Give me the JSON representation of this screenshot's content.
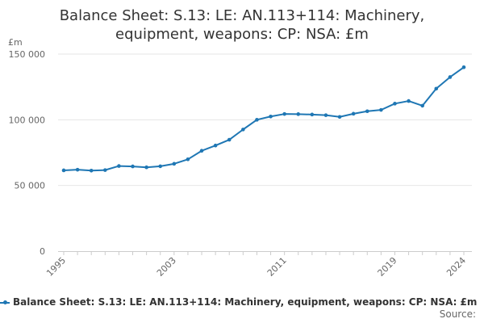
{
  "chart_data": {
    "type": "line",
    "title_lines": [
      "Balance Sheet: S.13: LE: AN.113+114: Machinery,",
      "equipment, weapons: CP: NSA: £m"
    ],
    "y_unit_label": "£m",
    "x_tick_labels": [
      "1995",
      "2003",
      "2011",
      "2019",
      "2024"
    ],
    "y_tick_labels": [
      "0",
      "50 000",
      "100 000",
      "150 000"
    ],
    "y_ticks": [
      0,
      50000,
      100000,
      150000
    ],
    "xlim": [
      1995,
      2024
    ],
    "ylim": [
      0,
      150000
    ],
    "grid": true,
    "legend_position": "bottom",
    "series": [
      {
        "name": "Balance Sheet: S.13: LE: AN.113+114: Machinery, equipment, weapons: CP: NSA: £m",
        "color": "#1f77b4",
        "x": [
          1995,
          1996,
          1997,
          1998,
          1999,
          2000,
          2001,
          2002,
          2003,
          2004,
          2005,
          2006,
          2007,
          2008,
          2009,
          2010,
          2011,
          2012,
          2013,
          2014,
          2015,
          2016,
          2017,
          2018,
          2019,
          2020,
          2021,
          2022,
          2023,
          2024
        ],
        "values": [
          61500,
          62000,
          61300,
          61700,
          64800,
          64500,
          63800,
          64600,
          66500,
          69900,
          76400,
          80400,
          84800,
          92600,
          100000,
          102500,
          104400,
          104300,
          104000,
          103500,
          102200,
          104600,
          106500,
          107500,
          112300,
          114300,
          110700,
          123700,
          132500,
          140000
        ]
      }
    ]
  },
  "source_label": "Source:"
}
